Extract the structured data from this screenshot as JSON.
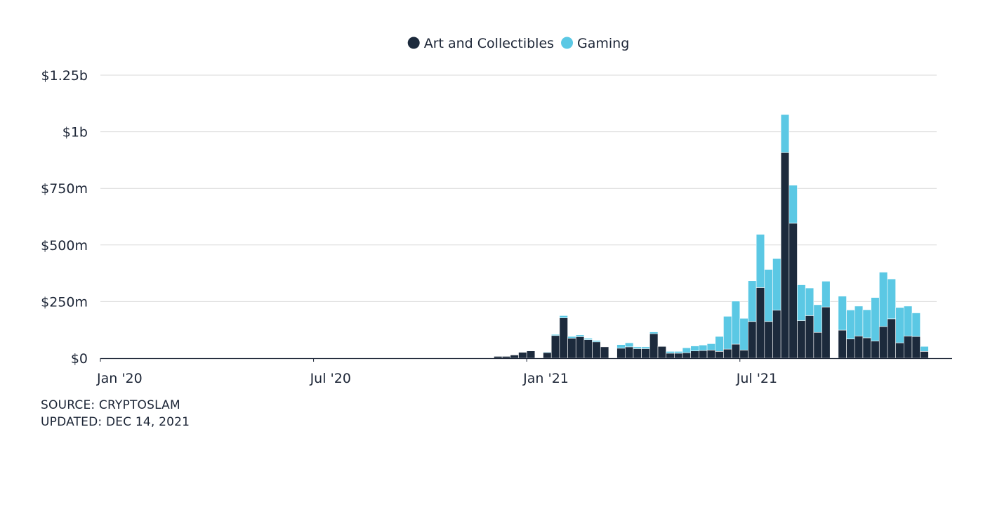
{
  "chart_data": {
    "type": "bar",
    "stacked": true,
    "colors": {
      "art": "#1c2a3c",
      "gaming": "#5bc8e4",
      "grid": "#d9d9d9",
      "axis": "#1c2536"
    },
    "legend": {
      "placement": "top-center",
      "items": [
        {
          "key": "art",
          "label": "Art and Collectibles"
        },
        {
          "key": "gaming",
          "label": "Gaming"
        }
      ]
    },
    "yaxis": {
      "min": 0,
      "max": 1250,
      "ticks": [
        {
          "value": 0,
          "label": "$0"
        },
        {
          "value": 250,
          "label": "$250m"
        },
        {
          "value": 500,
          "label": "$500m"
        },
        {
          "value": 750,
          "label": "$750m"
        },
        {
          "value": 1000,
          "label": "$1b"
        },
        {
          "value": 1250,
          "label": "$1.25b"
        }
      ],
      "grid": true
    },
    "xaxis": {
      "start": "2020-01-05",
      "end": "2021-12-19",
      "ticks": [
        {
          "date": "2020-01-05",
          "label": "Jan '20"
        },
        {
          "date": "2020-07-05",
          "label": "Jul '20"
        },
        {
          "date": "2021-01-03",
          "label": "Jan '21"
        },
        {
          "date": "2021-07-04",
          "label": "Jul '21"
        }
      ]
    },
    "x": [
      "2020-12-06",
      "2020-12-13",
      "2020-12-20",
      "2020-12-27",
      "2021-01-03",
      "2021-01-10",
      "2021-01-17",
      "2021-01-24",
      "2021-01-31",
      "2021-02-07",
      "2021-02-14",
      "2021-02-21",
      "2021-02-28",
      "2021-03-07",
      "2021-03-14",
      "2021-03-21",
      "2021-03-28",
      "2021-04-04",
      "2021-04-11",
      "2021-04-18",
      "2021-04-25",
      "2021-05-02",
      "2021-05-09",
      "2021-05-16",
      "2021-05-23",
      "2021-05-30",
      "2021-06-06",
      "2021-06-13",
      "2021-06-20",
      "2021-06-27",
      "2021-07-04",
      "2021-07-11",
      "2021-07-18",
      "2021-07-25",
      "2021-08-01",
      "2021-08-08",
      "2021-08-15",
      "2021-08-22",
      "2021-08-29",
      "2021-09-05",
      "2021-09-12",
      "2021-09-19",
      "2021-09-26",
      "2021-10-03",
      "2021-10-10",
      "2021-10-17",
      "2021-10-24",
      "2021-10-31",
      "2021-11-07",
      "2021-11-14",
      "2021-11-21",
      "2021-11-28",
      "2021-12-05",
      "2021-12-12"
    ],
    "series": [
      {
        "name": "Art and Collectibles",
        "key": "art",
        "values": [
          8,
          8,
          14,
          26,
          32,
          0,
          25,
          100,
          178,
          88,
          95,
          82,
          72,
          50,
          0,
          44,
          50,
          42,
          42,
          108,
          52,
          22,
          22,
          24,
          32,
          34,
          36,
          30,
          40,
          62,
          36,
          162,
          312,
          162,
          212,
          908,
          596,
          166,
          188,
          114,
          226,
          0,
          124,
          85,
          98,
          90,
          76,
          140,
          174,
          68,
          98,
          96,
          30,
          0
        ]
      },
      {
        "name": "Gaming",
        "key": "gaming",
        "values": [
          0,
          0,
          0,
          0,
          0,
          0,
          3,
          5,
          10,
          8,
          8,
          6,
          6,
          0,
          0,
          16,
          18,
          8,
          8,
          8,
          2,
          8,
          8,
          22,
          22,
          24,
          28,
          66,
          145,
          190,
          140,
          180,
          235,
          230,
          228,
          168,
          168,
          158,
          122,
          122,
          114,
          0,
          150,
          128,
          132,
          124,
          192,
          240,
          176,
          156,
          132,
          104,
          22,
          0
        ]
      }
    ]
  },
  "footer": {
    "source": "SOURCE: CRYPTOSLAM",
    "updated": "UPDATED: DEC 14, 2021"
  }
}
